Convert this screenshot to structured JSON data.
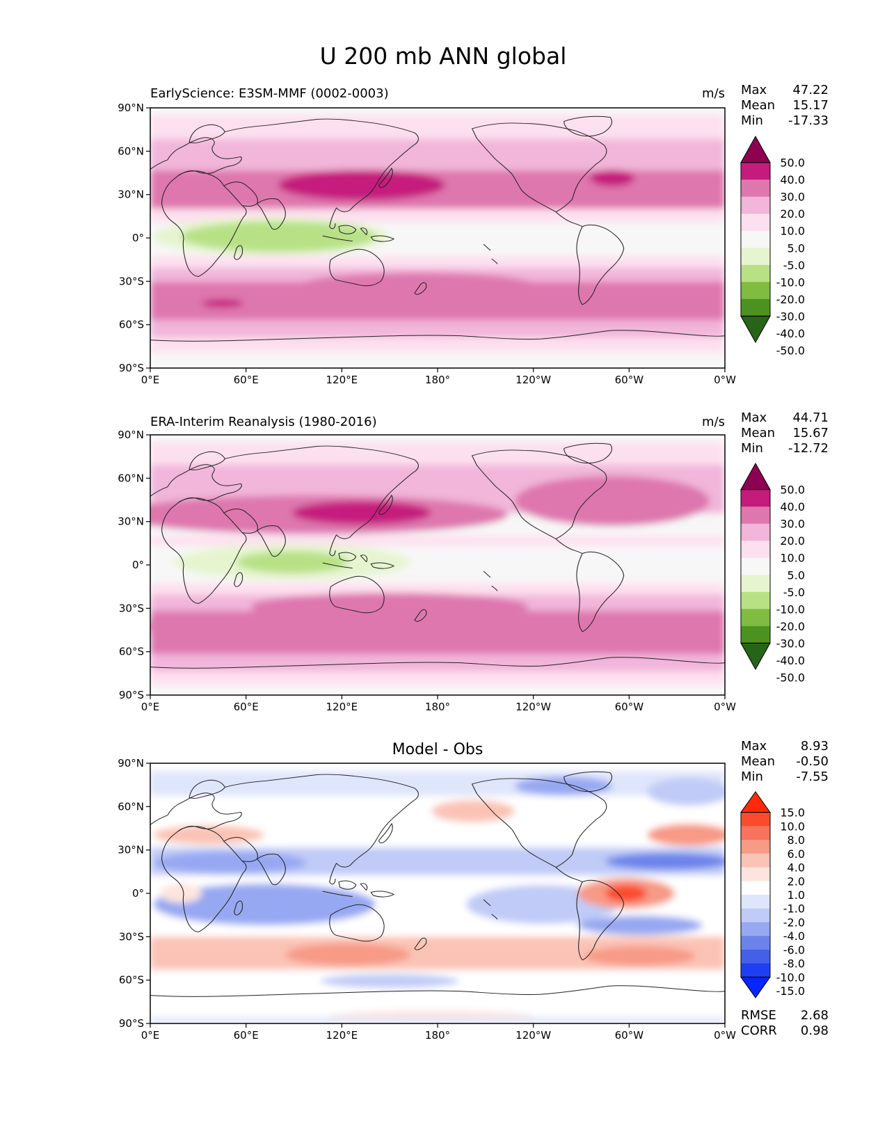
{
  "title": "U 200 mb ANN global",
  "panels": [
    {
      "key": "model",
      "subtitle": "EarlyScience: E3SM-MMF (0002-0003)",
      "center_title": "",
      "units": "m/s",
      "stats": [
        {
          "label": "Max",
          "value": "47.22"
        },
        {
          "label": "Mean",
          "value": "15.17"
        },
        {
          "label": "Min",
          "value": "-17.33"
        }
      ],
      "extra_stats": [],
      "colorbar": {
        "colors": [
          "#8e0152",
          "#c51b7d",
          "#de77ae",
          "#f1b6da",
          "#fde0ef",
          "#f7f7f7",
          "#e6f5d0",
          "#b8e186",
          "#7fbc41",
          "#4d9221",
          "#276419"
        ],
        "labels": [
          "50.0",
          "40.0",
          "30.0",
          "20.0",
          "10.0",
          "5.0",
          "-5.0",
          "-10.0",
          "-20.0",
          "-30.0",
          "-40.0",
          "-50.0"
        ]
      }
    },
    {
      "key": "obs",
      "subtitle": "ERA-Interim Reanalysis (1980-2016)",
      "center_title": "",
      "units": "m/s",
      "stats": [
        {
          "label": "Max",
          "value": "44.71"
        },
        {
          "label": "Mean",
          "value": "15.67"
        },
        {
          "label": "Min",
          "value": "-12.72"
        }
      ],
      "extra_stats": [],
      "colorbar": {
        "colors": [
          "#8e0152",
          "#c51b7d",
          "#de77ae",
          "#f1b6da",
          "#fde0ef",
          "#f7f7f7",
          "#e6f5d0",
          "#b8e186",
          "#7fbc41",
          "#4d9221",
          "#276419"
        ],
        "labels": [
          "50.0",
          "40.0",
          "30.0",
          "20.0",
          "10.0",
          "5.0",
          "-5.0",
          "-10.0",
          "-20.0",
          "-30.0",
          "-40.0",
          "-50.0"
        ]
      }
    },
    {
      "key": "diff",
      "subtitle": "",
      "center_title": "Model - Obs",
      "units": "",
      "stats": [
        {
          "label": "Max",
          "value": "8.93"
        },
        {
          "label": "Mean",
          "value": "-0.50"
        },
        {
          "label": "Min",
          "value": "-7.55"
        }
      ],
      "extra_stats": [
        {
          "label": "RMSE",
          "value": "2.68"
        },
        {
          "label": "CORR",
          "value": "0.98"
        }
      ],
      "colorbar": {
        "colors": [
          "#ff2a0a",
          "#fb4b2e",
          "#f7735b",
          "#f79a86",
          "#fbc3b5",
          "#fde5de",
          "#ffffff",
          "#dfe5fb",
          "#c0cbf7",
          "#97a8f2",
          "#6c83ea",
          "#4460e6",
          "#1f3ff5",
          "#0626ff"
        ],
        "labels": [
          "15.0",
          "10.0",
          "8.0",
          "6.0",
          "4.0",
          "2.0",
          "1.0",
          "-1.0",
          "-2.0",
          "-4.0",
          "-6.0",
          "-8.0",
          "-10.0",
          "-15.0"
        ]
      }
    }
  ],
  "axes": {
    "lat_ticks": [
      "90°N",
      "60°N",
      "30°N",
      "0°",
      "30°S",
      "60°S",
      "90°S"
    ],
    "lon_ticks": [
      "0°E",
      "60°E",
      "120°E",
      "180°",
      "120°W",
      "60°W",
      "0°W"
    ]
  }
}
